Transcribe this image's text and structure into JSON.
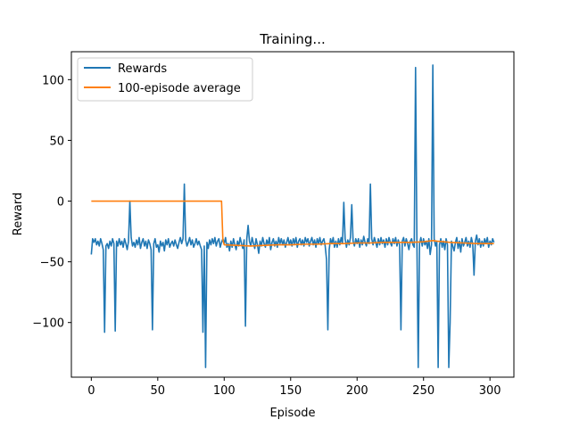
{
  "chart_data": {
    "type": "line",
    "title": "Training...",
    "xlabel": "Episode",
    "ylabel": "Reward",
    "xlim": [
      -15,
      318
    ],
    "ylim": [
      -145,
      123
    ],
    "xticks": [
      0,
      50,
      100,
      150,
      200,
      250,
      300
    ],
    "yticks": [
      -100,
      -50,
      0,
      50,
      100
    ],
    "grid": false,
    "legend": "upper-left",
    "series": [
      {
        "name": "Rewards",
        "color": "#1f77b4",
        "points": [
          [
            0,
            -44
          ],
          [
            1,
            -31
          ],
          [
            2,
            -34
          ],
          [
            3,
            -31
          ],
          [
            4,
            -36
          ],
          [
            5,
            -33
          ],
          [
            6,
            -37
          ],
          [
            7,
            -31
          ],
          [
            8,
            -35
          ],
          [
            9,
            -40
          ],
          [
            10,
            -108
          ],
          [
            11,
            -37
          ],
          [
            12,
            -35
          ],
          [
            13,
            -39
          ],
          [
            14,
            -33
          ],
          [
            15,
            -37
          ],
          [
            16,
            -31
          ],
          [
            17,
            -35
          ],
          [
            18,
            -107
          ],
          [
            19,
            -33
          ],
          [
            20,
            -37
          ],
          [
            21,
            -31
          ],
          [
            22,
            -36
          ],
          [
            23,
            -33
          ],
          [
            24,
            -38
          ],
          [
            25,
            -31
          ],
          [
            26,
            -35
          ],
          [
            27,
            -40
          ],
          [
            28,
            -33
          ],
          [
            29,
            0
          ],
          [
            30,
            -30
          ],
          [
            31,
            -37
          ],
          [
            32,
            -34
          ],
          [
            33,
            -38
          ],
          [
            34,
            -32
          ],
          [
            35,
            -36
          ],
          [
            36,
            -30
          ],
          [
            37,
            -39
          ],
          [
            38,
            -34
          ],
          [
            39,
            -31
          ],
          [
            40,
            -37
          ],
          [
            41,
            -33
          ],
          [
            42,
            -39
          ],
          [
            43,
            -32
          ],
          [
            44,
            -35
          ],
          [
            45,
            -40
          ],
          [
            46,
            -106
          ],
          [
            47,
            -35
          ],
          [
            48,
            -31
          ],
          [
            49,
            -38
          ],
          [
            50,
            -36
          ],
          [
            51,
            -42
          ],
          [
            52,
            -33
          ],
          [
            53,
            -37
          ],
          [
            54,
            -34
          ],
          [
            55,
            -41
          ],
          [
            56,
            -32
          ],
          [
            57,
            -36
          ],
          [
            58,
            -31
          ],
          [
            59,
            -38
          ],
          [
            60,
            -35
          ],
          [
            61,
            -33
          ],
          [
            62,
            -37
          ],
          [
            63,
            -32
          ],
          [
            64,
            -36
          ],
          [
            65,
            -39
          ],
          [
            66,
            -34
          ],
          [
            67,
            -30
          ],
          [
            68,
            -35
          ],
          [
            69,
            -31
          ],
          [
            70,
            14
          ],
          [
            71,
            -32
          ],
          [
            72,
            -37
          ],
          [
            73,
            -34
          ],
          [
            74,
            -30
          ],
          [
            75,
            -36
          ],
          [
            76,
            -32
          ],
          [
            77,
            -38
          ],
          [
            78,
            -35
          ],
          [
            79,
            -31
          ],
          [
            80,
            -36
          ],
          [
            81,
            -33
          ],
          [
            82,
            -37
          ],
          [
            83,
            -40
          ],
          [
            84,
            -108
          ],
          [
            85,
            -37
          ],
          [
            86,
            -137
          ],
          [
            87,
            -34
          ],
          [
            88,
            -39
          ],
          [
            89,
            -32
          ],
          [
            90,
            -36
          ],
          [
            91,
            -31
          ],
          [
            92,
            -35
          ],
          [
            93,
            -30
          ],
          [
            94,
            -37
          ],
          [
            95,
            -33
          ],
          [
            96,
            -31
          ],
          [
            97,
            -38
          ],
          [
            98,
            -34
          ],
          [
            99,
            -31
          ],
          [
            100,
            -35
          ],
          [
            101,
            -30
          ],
          [
            102,
            -38
          ],
          [
            103,
            -35
          ],
          [
            104,
            -41
          ],
          [
            105,
            -33
          ],
          [
            106,
            -38
          ],
          [
            107,
            -31
          ],
          [
            108,
            -36
          ],
          [
            109,
            -40
          ],
          [
            110,
            -33
          ],
          [
            111,
            -37
          ],
          [
            112,
            -30
          ],
          [
            113,
            -35
          ],
          [
            114,
            -39
          ],
          [
            115,
            -32
          ],
          [
            116,
            -103
          ],
          [
            117,
            -31
          ],
          [
            118,
            -20
          ],
          [
            119,
            -33
          ],
          [
            120,
            -37
          ],
          [
            121,
            -30
          ],
          [
            122,
            -35
          ],
          [
            123,
            -39
          ],
          [
            124,
            -31
          ],
          [
            125,
            -36
          ],
          [
            126,
            -43
          ],
          [
            127,
            -33
          ],
          [
            128,
            -37
          ],
          [
            129,
            -30
          ],
          [
            130,
            -35
          ],
          [
            131,
            -38
          ],
          [
            132,
            -32
          ],
          [
            133,
            -36
          ],
          [
            134,
            -30
          ],
          [
            135,
            -40
          ],
          [
            136,
            -34
          ],
          [
            137,
            -31
          ],
          [
            138,
            -37
          ],
          [
            139,
            -33
          ],
          [
            140,
            -38
          ],
          [
            141,
            -30
          ],
          [
            142,
            -35
          ],
          [
            143,
            -31
          ],
          [
            144,
            -36
          ],
          [
            145,
            -32
          ],
          [
            146,
            -38
          ],
          [
            147,
            -34
          ],
          [
            148,
            -30
          ],
          [
            149,
            -36
          ],
          [
            150,
            -32
          ],
          [
            151,
            -37
          ],
          [
            152,
            -31
          ],
          [
            153,
            -35
          ],
          [
            154,
            -30
          ],
          [
            155,
            -38
          ],
          [
            156,
            -33
          ],
          [
            157,
            -31
          ],
          [
            158,
            -36
          ],
          [
            159,
            -32
          ],
          [
            160,
            -37
          ],
          [
            161,
            -30
          ],
          [
            162,
            -34
          ],
          [
            163,
            -31
          ],
          [
            164,
            -37
          ],
          [
            165,
            -33
          ],
          [
            166,
            -30
          ],
          [
            167,
            -36
          ],
          [
            168,
            -32
          ],
          [
            169,
            -38
          ],
          [
            170,
            -31
          ],
          [
            171,
            -35
          ],
          [
            172,
            -30
          ],
          [
            173,
            -36
          ],
          [
            174,
            -33
          ],
          [
            175,
            -31
          ],
          [
            176,
            -37
          ],
          [
            177,
            -48
          ],
          [
            178,
            -106
          ],
          [
            179,
            -40
          ],
          [
            180,
            -31
          ],
          [
            181,
            -35
          ],
          [
            182,
            -30
          ],
          [
            183,
            -38
          ],
          [
            184,
            -33
          ],
          [
            185,
            -38
          ],
          [
            186,
            -31
          ],
          [
            187,
            -36
          ],
          [
            188,
            -30
          ],
          [
            189,
            -35
          ],
          [
            190,
            -1
          ],
          [
            191,
            -31
          ],
          [
            192,
            -38
          ],
          [
            193,
            -32
          ],
          [
            194,
            -36
          ],
          [
            195,
            -30
          ],
          [
            196,
            -3
          ],
          [
            197,
            -33
          ],
          [
            198,
            -37
          ],
          [
            199,
            -31
          ],
          [
            200,
            -35
          ],
          [
            201,
            -31
          ],
          [
            202,
            -38
          ],
          [
            203,
            -32
          ],
          [
            204,
            -36
          ],
          [
            205,
            -29
          ],
          [
            206,
            -34
          ],
          [
            207,
            -37
          ],
          [
            208,
            -31
          ],
          [
            209,
            -35
          ],
          [
            210,
            14
          ],
          [
            211,
            -31
          ],
          [
            212,
            -36
          ],
          [
            213,
            -30
          ],
          [
            214,
            -34
          ],
          [
            215,
            -38
          ],
          [
            216,
            -31
          ],
          [
            217,
            -36
          ],
          [
            218,
            -30
          ],
          [
            219,
            -35
          ],
          [
            220,
            -32
          ],
          [
            221,
            -38
          ],
          [
            222,
            -31
          ],
          [
            223,
            -36
          ],
          [
            224,
            -30
          ],
          [
            225,
            -34
          ],
          [
            226,
            -37
          ],
          [
            227,
            -31
          ],
          [
            228,
            -35
          ],
          [
            229,
            -30
          ],
          [
            230,
            -37
          ],
          [
            231,
            -32
          ],
          [
            232,
            -36
          ],
          [
            233,
            -106
          ],
          [
            234,
            -33
          ],
          [
            235,
            -30
          ],
          [
            236,
            -37
          ],
          [
            237,
            -31
          ],
          [
            238,
            -35
          ],
          [
            239,
            -40
          ],
          [
            240,
            -33
          ],
          [
            241,
            -31
          ],
          [
            242,
            -36
          ],
          [
            243,
            -38
          ],
          [
            244,
            110
          ],
          [
            245,
            -32
          ],
          [
            246,
            -137
          ],
          [
            247,
            -35
          ],
          [
            248,
            -30
          ],
          [
            249,
            -37
          ],
          [
            250,
            -31
          ],
          [
            251,
            -36
          ],
          [
            252,
            -33
          ],
          [
            253,
            -39
          ],
          [
            254,
            -31
          ],
          [
            255,
            -44
          ],
          [
            256,
            -36
          ],
          [
            257,
            112
          ],
          [
            258,
            -31
          ],
          [
            259,
            -37
          ],
          [
            260,
            -33
          ],
          [
            261,
            -137
          ],
          [
            262,
            -36
          ],
          [
            263,
            -31
          ],
          [
            264,
            -38
          ],
          [
            265,
            -33
          ],
          [
            266,
            -40
          ],
          [
            267,
            -31
          ],
          [
            268,
            -36
          ],
          [
            269,
            -137
          ],
          [
            270,
            -100
          ],
          [
            271,
            -33
          ],
          [
            272,
            -37
          ],
          [
            273,
            -41
          ],
          [
            274,
            -34
          ],
          [
            275,
            -30
          ],
          [
            276,
            -39
          ],
          [
            277,
            -33
          ],
          [
            278,
            -42
          ],
          [
            279,
            -31
          ],
          [
            280,
            -37
          ],
          [
            281,
            -34
          ],
          [
            282,
            -30
          ],
          [
            283,
            -37
          ],
          [
            284,
            -33
          ],
          [
            285,
            -38
          ],
          [
            286,
            -30
          ],
          [
            287,
            -35
          ],
          [
            288,
            -61
          ],
          [
            289,
            -33
          ],
          [
            290,
            -28
          ],
          [
            291,
            -36
          ],
          [
            292,
            -31
          ],
          [
            293,
            -38
          ],
          [
            294,
            -33
          ],
          [
            295,
            -37
          ],
          [
            296,
            -31
          ],
          [
            297,
            -35
          ],
          [
            298,
            -30
          ],
          [
            299,
            -38
          ],
          [
            300,
            -33
          ],
          [
            301,
            -36
          ],
          [
            302,
            -31
          ],
          [
            303,
            -34
          ]
        ]
      },
      {
        "name": "100-episode average",
        "color": "#ff7f0e",
        "points": [
          [
            0,
            0
          ],
          [
            50,
            0
          ],
          [
            98,
            0
          ],
          [
            99,
            -32
          ],
          [
            100,
            -36
          ],
          [
            110,
            -36.5
          ],
          [
            120,
            -37
          ],
          [
            130,
            -36.5
          ],
          [
            140,
            -36
          ],
          [
            150,
            -36
          ],
          [
            160,
            -35.5
          ],
          [
            170,
            -35.5
          ],
          [
            180,
            -35
          ],
          [
            190,
            -35
          ],
          [
            200,
            -34.5
          ],
          [
            210,
            -34.5
          ],
          [
            220,
            -34
          ],
          [
            230,
            -34
          ],
          [
            240,
            -34
          ],
          [
            250,
            -33.5
          ],
          [
            257,
            -32.5
          ],
          [
            260,
            -33
          ],
          [
            270,
            -34
          ],
          [
            280,
            -34.5
          ],
          [
            290,
            -35
          ],
          [
            300,
            -35
          ],
          [
            303,
            -35
          ]
        ]
      }
    ]
  }
}
